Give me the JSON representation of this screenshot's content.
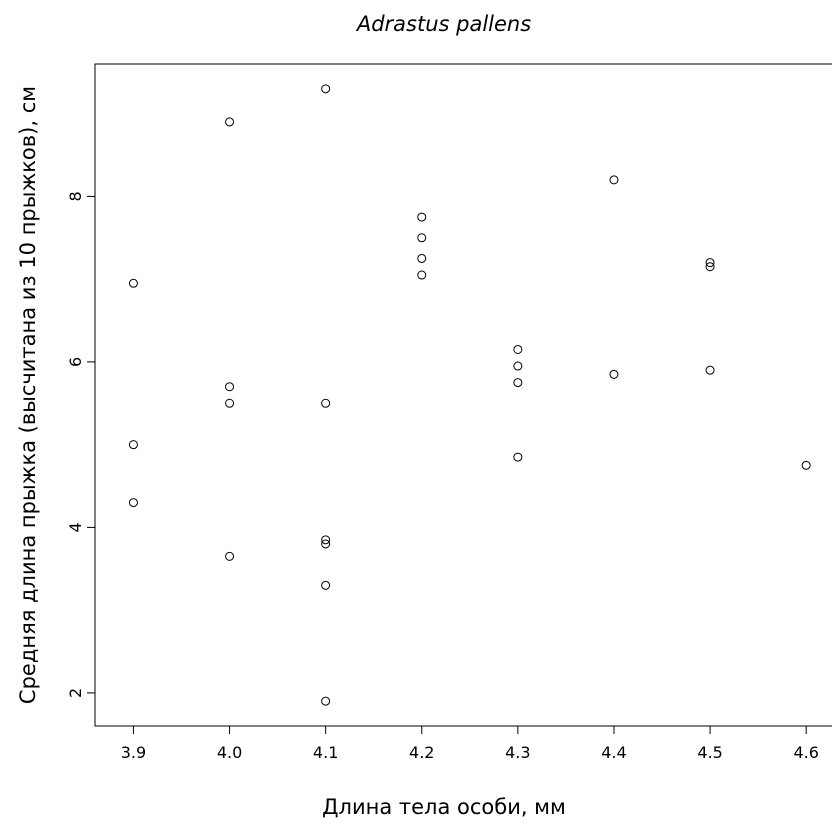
{
  "chart_data": {
    "type": "scatter",
    "title": "Adrastus pallens",
    "xlabel": "Длина тела особи, мм",
    "ylabel": "Средняя длина прыжка (высчитана из 10 прыжков), см",
    "xlim": [
      3.86,
      4.63
    ],
    "ylim": [
      1.6,
      9.6
    ],
    "x_ticks": [
      "3.9",
      "4.0",
      "4.1",
      "4.2",
      "4.3",
      "4.4",
      "4.5",
      "4.6"
    ],
    "y_ticks": [
      "2",
      "4",
      "6",
      "8"
    ],
    "grid": false,
    "marker": "open-circle",
    "points": [
      {
        "x": 3.9,
        "y": 6.95
      },
      {
        "x": 3.9,
        "y": 5.0
      },
      {
        "x": 3.9,
        "y": 4.3
      },
      {
        "x": 4.0,
        "y": 8.9
      },
      {
        "x": 4.0,
        "y": 5.7
      },
      {
        "x": 4.0,
        "y": 5.5
      },
      {
        "x": 4.0,
        "y": 3.65
      },
      {
        "x": 4.1,
        "y": 9.3
      },
      {
        "x": 4.1,
        "y": 5.5
      },
      {
        "x": 4.1,
        "y": 3.85
      },
      {
        "x": 4.1,
        "y": 3.8
      },
      {
        "x": 4.1,
        "y": 3.3
      },
      {
        "x": 4.1,
        "y": 1.9
      },
      {
        "x": 4.2,
        "y": 7.75
      },
      {
        "x": 4.2,
        "y": 7.5
      },
      {
        "x": 4.2,
        "y": 7.25
      },
      {
        "x": 4.2,
        "y": 7.05
      },
      {
        "x": 4.3,
        "y": 6.15
      },
      {
        "x": 4.3,
        "y": 5.95
      },
      {
        "x": 4.3,
        "y": 5.75
      },
      {
        "x": 4.3,
        "y": 4.85
      },
      {
        "x": 4.4,
        "y": 8.2
      },
      {
        "x": 4.4,
        "y": 5.85
      },
      {
        "x": 4.5,
        "y": 7.2
      },
      {
        "x": 4.5,
        "y": 7.15
      },
      {
        "x": 4.5,
        "y": 5.9
      },
      {
        "x": 4.6,
        "y": 4.75
      }
    ]
  }
}
